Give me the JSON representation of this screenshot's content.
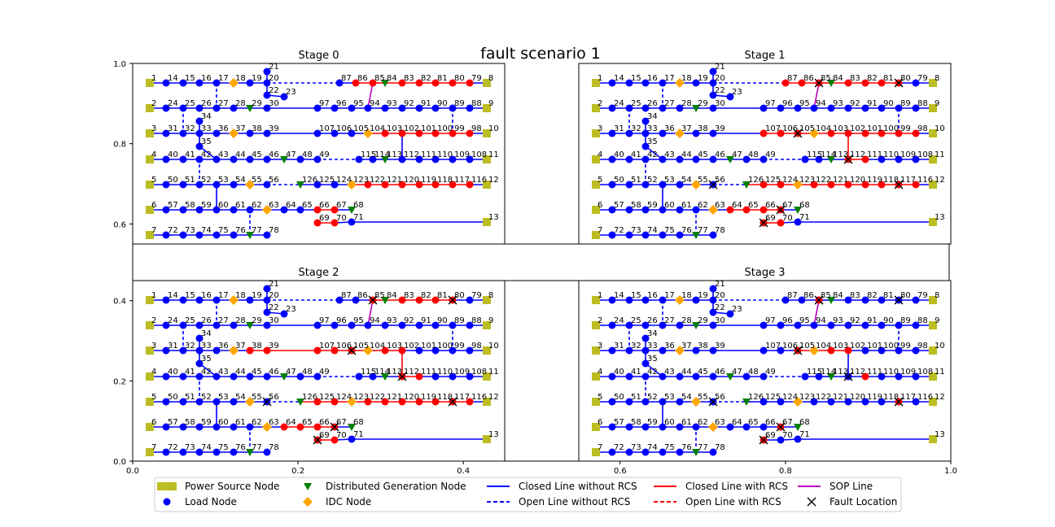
{
  "suptitle": "fault scenario 1",
  "colors": {
    "source": "#bcbd22",
    "load": "#0000ff",
    "dg": "#008000",
    "idc": "#ffa500",
    "rcs": "#ff0000",
    "sop": "#bf00bf",
    "fault": "#000000"
  },
  "legend": {
    "placement": "bottom-center",
    "items": [
      {
        "key": "source",
        "label": "Power Source Node"
      },
      {
        "key": "load",
        "label": "Load Node"
      },
      {
        "key": "dg",
        "label": "Distributed Generation Node"
      },
      {
        "key": "idc",
        "label": "IDC Node"
      },
      {
        "key": "closed",
        "label": "Closed Line without RCS"
      },
      {
        "key": "open",
        "label": "Open Line without RCS"
      },
      {
        "key": "closed_rcs",
        "label": "Closed Line with RCS"
      },
      {
        "key": "open_rcs",
        "label": "Open Line with RCS"
      },
      {
        "key": "sop",
        "label": "SOP Line"
      },
      {
        "key": "fault",
        "label": "Fault Location"
      }
    ]
  },
  "chart_data": {
    "type": "scatter",
    "grid": false,
    "panels": [
      {
        "title": "Stage 0",
        "xlim": [
          0,
          0.45
        ],
        "ylim": [
          0.55,
          1.0
        ],
        "yticks": [
          "0.6",
          "0.8",
          "1.0"
        ],
        "xticks": []
      },
      {
        "title": "Stage 1",
        "xlim": [
          0.55,
          1.0
        ],
        "ylim": [
          0.55,
          1.0
        ],
        "yticks": [],
        "xticks": []
      },
      {
        "title": "Stage 2",
        "xlim": [
          0,
          0.45
        ],
        "ylim": [
          0,
          0.45
        ],
        "yticks": [
          "0.0",
          "0.2",
          "0.4"
        ],
        "xticks": [
          "0.0",
          "0.2",
          "0.4"
        ]
      },
      {
        "title": "Stage 3",
        "xlim": [
          0.55,
          1.0
        ],
        "ylim": [
          0,
          0.45
        ],
        "yticks": [],
        "xticks": [
          "0.6",
          "0.8",
          "1.0"
        ]
      }
    ],
    "source_nodes": [
      "1",
      "2",
      "3",
      "4",
      "5",
      "6",
      "7",
      "8",
      "9",
      "10",
      "11",
      "12",
      "13"
    ],
    "dg_nodes": [
      "29",
      "47",
      "77",
      "84",
      "113",
      "126",
      "68"
    ],
    "idc_nodes": [
      "18",
      "37",
      "55",
      "63",
      "104",
      "123"
    ],
    "bus_rows": [
      [
        "1",
        "14",
        "15",
        "16",
        "17",
        "18",
        "19",
        "20"
      ],
      [
        "87",
        "86",
        "85",
        "84",
        "83",
        "82",
        "81",
        "80",
        "79",
        "8"
      ],
      [
        "2",
        "24",
        "25",
        "26",
        "27",
        "28",
        "29",
        "30",
        "97",
        "96",
        "95",
        "94",
        "93",
        "92",
        "91",
        "90",
        "89",
        "88",
        "9"
      ],
      [
        "3",
        "31",
        "32",
        "33",
        "36",
        "37",
        "38",
        "39",
        "107",
        "106",
        "105",
        "104",
        "103",
        "102",
        "101",
        "100",
        "99",
        "98",
        "10"
      ],
      [
        "4",
        "40",
        "41",
        "42",
        "43",
        "44",
        "45",
        "46",
        "47",
        "48",
        "49"
      ],
      [
        "115",
        "114",
        "113",
        "112",
        "111",
        "110",
        "109",
        "108",
        "11"
      ],
      [
        "5",
        "50",
        "51",
        "52",
        "53",
        "54",
        "55",
        "56"
      ],
      [
        "126",
        "125",
        "124",
        "123",
        "122",
        "121",
        "120",
        "119",
        "118",
        "117",
        "116",
        "12"
      ],
      [
        "6",
        "57",
        "58",
        "59",
        "60",
        "61",
        "62",
        "63",
        "64",
        "65",
        "66",
        "67",
        "68"
      ],
      [
        "7",
        "72",
        "73",
        "74",
        "75",
        "76",
        "77",
        "78"
      ],
      [
        "69",
        "70",
        "71",
        "13"
      ],
      [
        "21",
        "20",
        "22",
        "23"
      ],
      [
        "34",
        "33",
        "35"
      ]
    ],
    "stages": [
      {
        "stage": 0,
        "rcs_nodes": [
          "86",
          "85",
          "84",
          "83",
          "82",
          "81",
          "80",
          "79",
          "104",
          "103",
          "102",
          "101",
          "100",
          "99",
          "98",
          "47",
          "113",
          "123",
          "122",
          "121",
          "120",
          "119",
          "118",
          "117",
          "116",
          "66",
          "67",
          "69",
          "70"
        ],
        "fault_nodes": []
      },
      {
        "stage": 1,
        "rcs_nodes": [
          "87",
          "86",
          "85",
          "84",
          "83",
          "82",
          "81",
          "80",
          "107",
          "106",
          "105",
          "104",
          "103",
          "102",
          "101",
          "100",
          "99",
          "98",
          "112",
          "111",
          "126",
          "125",
          "124",
          "123",
          "122",
          "121",
          "120",
          "119",
          "118",
          "117",
          "116",
          "64",
          "65",
          "66",
          "67",
          "69",
          "70"
        ],
        "fault_nodes": [
          "85",
          "80",
          "105",
          "112",
          "56",
          "117",
          "67",
          "69"
        ]
      },
      {
        "stage": 2,
        "rcs_nodes": [
          "85",
          "84",
          "83",
          "82",
          "81",
          "80",
          "38",
          "39",
          "107",
          "106",
          "105",
          "104",
          "103",
          "102",
          "112",
          "111",
          "47",
          "126",
          "125",
          "124",
          "123",
          "122",
          "121",
          "120",
          "119",
          "118",
          "117",
          "116",
          "64",
          "65",
          "66",
          "67",
          "69",
          "70"
        ],
        "fault_nodes": [
          "85",
          "80",
          "105",
          "112",
          "56",
          "117",
          "67",
          "69"
        ]
      },
      {
        "stage": 3,
        "rcs_nodes": [
          "85",
          "105",
          "104",
          "103",
          "102",
          "47",
          "111",
          "123",
          "117",
          "67",
          "69"
        ],
        "fault_nodes": [
          "85",
          "80",
          "105",
          "112",
          "56",
          "117",
          "67",
          "69"
        ]
      }
    ]
  }
}
